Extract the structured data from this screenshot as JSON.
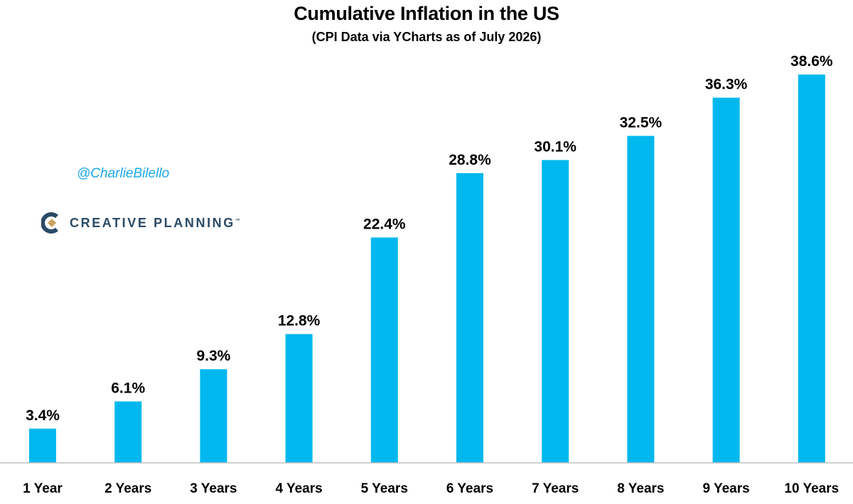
{
  "header": {
    "title": "Cumulative Inflation in the US",
    "subtitle": "(CPI Data via YCharts as of July 2026)"
  },
  "watermark": {
    "handle": "@CharlieBilello",
    "brand": "CREATIVE PLANNING",
    "brand_mark": "™"
  },
  "colors": {
    "bar": "#00b8ee",
    "handle": "#1ba8e3",
    "brand_text": "#2b4a66",
    "axis": "#bfbfbf"
  },
  "chart_data": {
    "type": "bar",
    "title": "Cumulative Inflation in the US",
    "subtitle": "(CPI Data via YCharts as of July 2026)",
    "categories": [
      "1 Year",
      "2 Years",
      "3 Years",
      "4 Years",
      "5 Years",
      "6 Years",
      "7 Years",
      "8 Years",
      "9 Years",
      "10 Years"
    ],
    "values": [
      3.4,
      6.1,
      9.3,
      12.8,
      22.4,
      28.8,
      30.1,
      32.5,
      36.3,
      38.6
    ],
    "data_labels": [
      "3.4%",
      "6.1%",
      "9.3%",
      "12.8%",
      "22.4%",
      "28.8%",
      "30.1%",
      "32.5%",
      "36.3%",
      "38.6%"
    ],
    "ylim": [
      0,
      40
    ],
    "grid": false,
    "legend": "none",
    "xlabel": "",
    "ylabel": ""
  }
}
